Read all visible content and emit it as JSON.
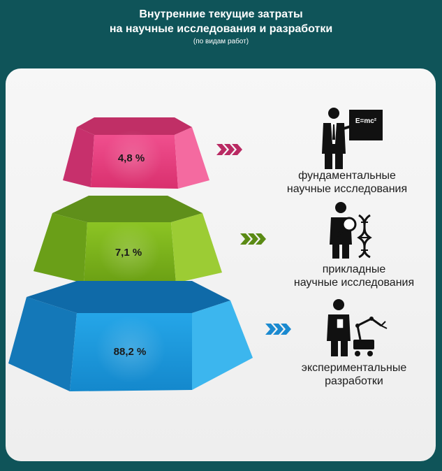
{
  "header": {
    "title_line1": "Внутренние текущие затраты",
    "title_line2": "на научные исследования и разработки",
    "subtitle": "(по видам работ)"
  },
  "chart_data": {
    "type": "pyramid",
    "unit": "%",
    "categories": [
      "фундаментальные научные исследования",
      "прикладные научные исследования",
      "экспериментальные разработки"
    ],
    "values": [
      4.8,
      7.1,
      88.2
    ],
    "value_labels": [
      "4,8 %",
      "7,1 %",
      "88,2 %"
    ],
    "colors": [
      "#e6457f",
      "#7ab31e",
      "#1c96d8"
    ],
    "title": "Внутренние текущие затраты на научные исследования и разработки",
    "subtitle": "(по видам работ)"
  },
  "labels": {
    "fundamental": [
      "фундаментальные",
      "научные исследования"
    ],
    "applied": [
      "прикладные",
      "научные исследования"
    ],
    "experimental": [
      "экспериментальные",
      "разработки"
    ]
  },
  "icons": {
    "fundamental": "scientist-blackboard-icon",
    "applied": "scientist-magnifier-dna-icon",
    "experimental": "engineer-robot-arm-icon",
    "blackboard_text": "E=mc²"
  }
}
